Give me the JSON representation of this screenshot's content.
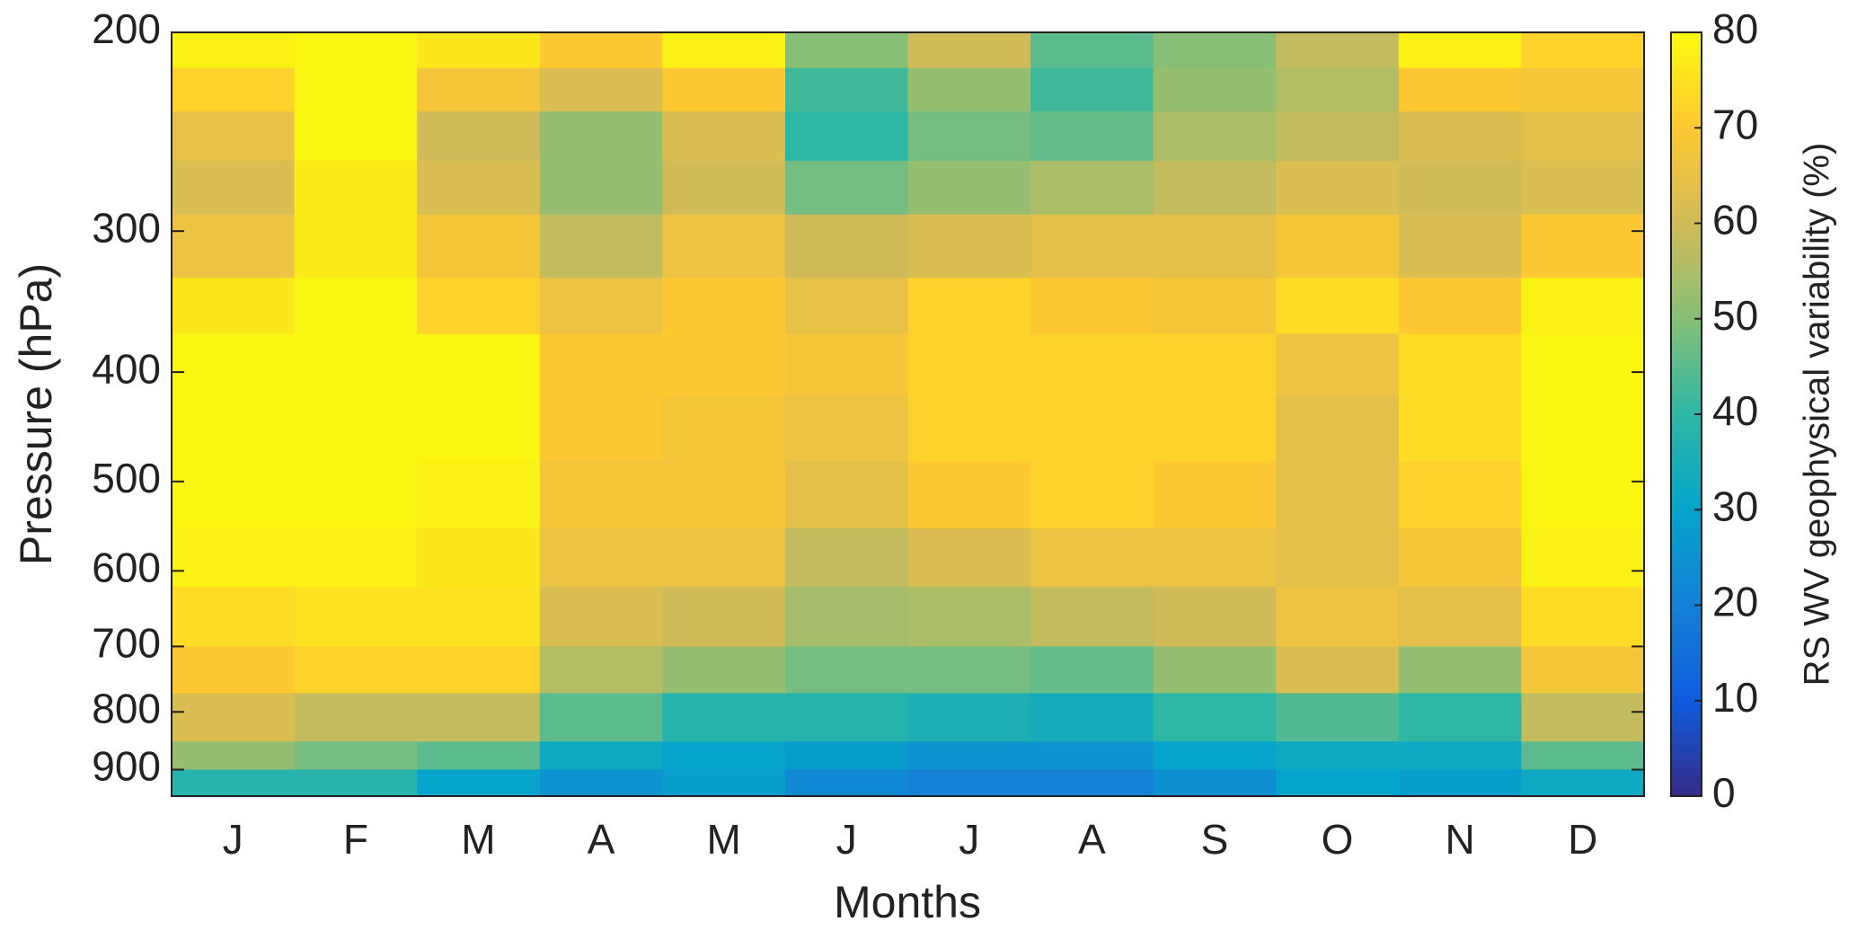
{
  "chart_data": {
    "type": "heatmap",
    "xlabel": "Months",
    "ylabel": "Pressure (hPa)",
    "colorbar_label": "RS WV geophysical variability (%)",
    "categories": [
      "J",
      "F",
      "M",
      "A",
      "M",
      "J",
      "J",
      "A",
      "S",
      "O",
      "N",
      "D"
    ],
    "ybins": [
      200,
      215,
      235,
      260,
      290,
      330,
      370,
      420,
      480,
      550,
      620,
      700,
      770,
      850,
      900,
      950
    ],
    "ylim": [
      200,
      950
    ],
    "yscale": "log",
    "yticks": [
      200,
      300,
      400,
      500,
      600,
      700,
      800,
      900
    ],
    "clim": [
      0,
      80
    ],
    "cticks": [
      0,
      10,
      20,
      30,
      40,
      50,
      60,
      70,
      80
    ],
    "colorscale": [
      "#352a87",
      "#0f5cdd",
      "#1481d6",
      "#06a4ca",
      "#2eb7a4",
      "#87bf77",
      "#d1bb59",
      "#fec832",
      "#f9fb0e"
    ],
    "z": [
      [
        78,
        72,
        65,
        62,
        66,
        76,
        79,
        79,
        79,
        78,
        74,
        70,
        62,
        52,
        38
      ],
      [
        79,
        79,
        79,
        77,
        77,
        79,
        79,
        79,
        79,
        78,
        75,
        72,
        58,
        48,
        38
      ],
      [
        76,
        68,
        60,
        62,
        68,
        72,
        79,
        79,
        78,
        76,
        75,
        72,
        58,
        45,
        30
      ],
      [
        70,
        62,
        52,
        52,
        58,
        66,
        70,
        70,
        68,
        66,
        62,
        56,
        45,
        32,
        25
      ],
      [
        78,
        70,
        62,
        60,
        66,
        70,
        70,
        68,
        68,
        66,
        60,
        52,
        38,
        30,
        28
      ],
      [
        50,
        42,
        40,
        48,
        60,
        65,
        68,
        66,
        64,
        58,
        54,
        48,
        38,
        28,
        22
      ],
      [
        60,
        52,
        48,
        52,
        62,
        72,
        72,
        72,
        70,
        62,
        55,
        48,
        36,
        25,
        20
      ],
      [
        45,
        42,
        46,
        55,
        64,
        70,
        72,
        72,
        72,
        66,
        58,
        46,
        34,
        25,
        20
      ],
      [
        50,
        52,
        55,
        58,
        64,
        68,
        72,
        72,
        70,
        66,
        60,
        52,
        40,
        30,
        24
      ],
      [
        58,
        56,
        58,
        62,
        68,
        74,
        66,
        64,
        64,
        64,
        66,
        62,
        44,
        32,
        30
      ],
      [
        78,
        70,
        62,
        60,
        62,
        70,
        74,
        74,
        72,
        68,
        64,
        52,
        40,
        32,
        28
      ],
      [
        72,
        68,
        64,
        62,
        70,
        78,
        79,
        79,
        79,
        78,
        74,
        68,
        58,
        45,
        32
      ]
    ]
  }
}
